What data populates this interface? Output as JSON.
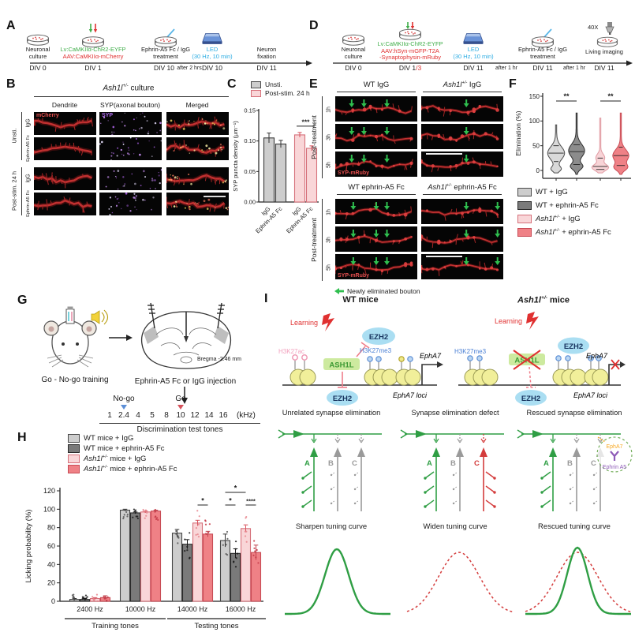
{
  "colors": {
    "green": "#3fae49",
    "red": "#e03131",
    "led_blue": "#29abe2",
    "violet": "#b06df0",
    "gray_light": "#cdcdcd",
    "gray_dark": "#7a7a7a",
    "pink_light": "#f9d6d8",
    "salmon": "#ef8186",
    "h3k27ac_pink": "#f2a0bd",
    "h3k27me3_blue": "#4a7fd4",
    "epha7_orange": "#f7a823",
    "ephrin_purple": "#8e5bb8"
  },
  "panelA": {
    "letter": "A",
    "steps": [
      {
        "l1": "Neuronal",
        "l2": "culture",
        "div": "DIV 0"
      },
      {
        "l1": "Lv:CaMKIIα-ChR2-EYFP",
        "l2": "AAV:CaMKIIα-mCherry",
        "div": "DIV 1"
      },
      {
        "l1": "Ephrin-A5 Fc / IgG",
        "l2": "treatment",
        "div": "DIV 10"
      },
      {
        "l1": "LED",
        "l2": "(30 Hz, 10 min)",
        "div": "DIV 10"
      },
      {
        "l1": "Neuron",
        "l2": "fixation",
        "div": "DIV 11"
      }
    ],
    "between": "after 2 hrs"
  },
  "panelD": {
    "letter": "D",
    "steps": [
      {
        "l1": "Neuronal",
        "l2": "culture",
        "div": "DIV 0"
      },
      {
        "l1": "Lv:CaMKIIα-ChR2-EYFP",
        "l2": "AAV:hSyn-mGFP-T2A",
        "l3": "-Synaptophysin-mRuby",
        "div": "DIV 1",
        "divRed": "/3"
      },
      {
        "l1": "LED",
        "l2": "(30 Hz, 10 min)",
        "div": "DIV 11"
      },
      {
        "l1": "Ephrin-A5 Fc / IgG",
        "l2": "treatment",
        "div": "DIV 11"
      },
      {
        "l1": "40X",
        "l2": "Living imaging",
        "div": "DIV 11"
      }
    ],
    "between1": "after 1 hr",
    "between2": "after 1 hr"
  },
  "panelB": {
    "letter": "B",
    "title_gene": "Ash1l",
    "title_sup": "+/-",
    "title_rest": " culture",
    "col_headers": [
      "Dendrite",
      "SYP(axonal bouton)",
      "Merged"
    ],
    "group_labels": [
      "Unsti.",
      "Post-stim. 24 h"
    ],
    "row_labels": [
      "IgG",
      "Ephrin-A5 Fc",
      "IgG",
      "Ephrin-A5 Fc"
    ],
    "overlay_dendrite": "mCherry",
    "overlay_syp": "SYP"
  },
  "panelE": {
    "letter": "E",
    "b1h1": "WT IgG",
    "b1h2_gene": "Ash1l",
    "b1h2_sup": "+/-",
    "b1h2_rest": " IgG",
    "b2h1": "WT ephrin-A5 Fc",
    "b2h2_gene": "Ash1l",
    "b2h2_sup": "+/-",
    "b2h2_rest": " ephrin-A5 Fc",
    "side": "Post-treatment",
    "times": [
      "1h",
      "3h",
      "5h"
    ],
    "overlay": "SYP-mRuby",
    "legend": "Newly eliminated bouton"
  },
  "panelG": {
    "letter": "G",
    "training": "Go - No-go training",
    "injection": "Ephrin-A5 Fc or IgG injection",
    "bregma": "Bregma -2.46 mm",
    "nogo": "No-go",
    "go": "Go",
    "tones": [
      "1",
      "2.4",
      "4",
      "5",
      "8",
      "10",
      "12",
      "14",
      "16"
    ],
    "unit": "(kHz)",
    "caption": "Discrimination test tones"
  },
  "panelI": {
    "letter": "I",
    "header_wt": "WT mice",
    "header_mut_gene": "Ash1l",
    "header_mut_sup": "+/-",
    "header_mut_rest": " mice",
    "wt": {
      "learning": "Learning",
      "h3k27ac": "H3K27ac",
      "ash1l": "ASH1L",
      "ezh2_top": "EZH2",
      "h3k27me3": "H3K27me3",
      "gene": "EphA7",
      "loci": "EphA7 loci",
      "ezh2_bottom": "EZH2"
    },
    "mut": {
      "learning": "Learning",
      "h3k27me3": "H3K27me3",
      "ash1l": "ASH1L",
      "ezh2_top": "EZH2",
      "gene": "EphA7",
      "loci": "EphA7 loci",
      "ezh2_bottom": "EZH2"
    },
    "captions": [
      "Unrelated synapse elimination",
      "Synapse elimination defect",
      "Rescued synapse elimination"
    ],
    "letters": [
      "A",
      "B",
      "C"
    ],
    "rescue_epha7": "EphA7",
    "rescue_ephrin": "Ephrin A5",
    "curve_captions": [
      "Sharpen tuning curve",
      "Widen tuning curve",
      "Rescued tuning curve"
    ]
  },
  "chart_data": [
    {
      "panel": "C",
      "type": "bar",
      "ylabel": "SYP puncta density (μm⁻¹)",
      "ylim": [
        0,
        0.15
      ],
      "yticks": [
        "0.00",
        "0.05",
        "0.10",
        "0.15"
      ],
      "legend": [
        "Unsti.",
        "Post-stim. 24 h"
      ],
      "categories": [
        "IgG",
        "Ephrin-A5 Fc",
        "IgG",
        "Ephrin-A5 Fc"
      ],
      "values": [
        0.105,
        0.095,
        0.11,
        0.088
      ],
      "errors": [
        0.008,
        0.006,
        0.004,
        0.004
      ],
      "significance": [
        {
          "bars": [
            2,
            3
          ],
          "label": "***"
        }
      ]
    },
    {
      "panel": "F",
      "type": "violin",
      "ylabel": "Elimination (%)",
      "ylim": [
        0,
        150
      ],
      "yticks": [
        0,
        50,
        100,
        150
      ],
      "groups": [
        {
          "label_gene": "",
          "label_sup": "",
          "label": "WT + IgG",
          "median": 35,
          "q1": 18,
          "q3": 50,
          "min": -5,
          "max": 92
        },
        {
          "label_gene": "",
          "label_sup": "",
          "label": "WT + ephrin-A5 Fc",
          "median": 38,
          "q1": 12,
          "q3": 52,
          "min": -8,
          "max": 116
        },
        {
          "label_gene": "Ash1l",
          "label_sup": "+/-",
          "label": " + IgG",
          "median": 8,
          "q1": 2,
          "q3": 25,
          "min": -5,
          "max": 106
        },
        {
          "label_gene": "Ash1l",
          "label_sup": "+/-",
          "label": " + ephrin-A5 Fc",
          "median": 30,
          "q1": 10,
          "q3": 47,
          "min": -8,
          "max": 116
        }
      ],
      "significance": [
        {
          "groups": [
            0,
            1
          ],
          "label": "**"
        },
        {
          "groups": [
            2,
            3
          ],
          "label": "**"
        }
      ]
    },
    {
      "panel": "H",
      "type": "bar",
      "ylabel": "Licking probability (%)",
      "ylim": [
        0,
        120
      ],
      "yticks": [
        0,
        20,
        40,
        60,
        80,
        100,
        120
      ],
      "categories": [
        "2400 Hz",
        "10000 Hz",
        "14000 Hz",
        "16000 Hz"
      ],
      "series": [
        {
          "gene": "",
          "sup": "",
          "name": "WT mice + IgG",
          "values": [
            2,
            99,
            74,
            66
          ],
          "errors": [
            1,
            1,
            4,
            7
          ]
        },
        {
          "gene": "",
          "sup": "",
          "name": "WT mice + ephrin-A5 Fc",
          "values": [
            2,
            96,
            62,
            52
          ],
          "errors": [
            1,
            1,
            5,
            5
          ]
        },
        {
          "gene": "Ash1l",
          "sup": "+/-",
          "name": " mice + IgG",
          "values": [
            3,
            97,
            85,
            79
          ],
          "errors": [
            1,
            1,
            3,
            4
          ]
        },
        {
          "gene": "Ash1l",
          "sup": "+/-",
          "name": " mice + ephrin-A5 Fc",
          "values": [
            4,
            98,
            73,
            53
          ],
          "errors": [
            2,
            1,
            3,
            8
          ]
        }
      ],
      "axis_groups": [
        {
          "label": "Training tones",
          "span": [
            0,
            1
          ]
        },
        {
          "label": "Testing tones",
          "span": [
            2,
            3
          ]
        }
      ],
      "significance": [
        {
          "group": 2,
          "bars": [
            2,
            3
          ],
          "label": "*",
          "level": 1
        },
        {
          "group": 3,
          "bars": [
            0,
            1
          ],
          "label": "*",
          "level": 1
        },
        {
          "group": 3,
          "bars": [
            2,
            3
          ],
          "label": "****",
          "level": 1
        },
        {
          "group": 3,
          "bars": [
            0,
            2
          ],
          "label": "*",
          "level": 2
        }
      ]
    }
  ]
}
